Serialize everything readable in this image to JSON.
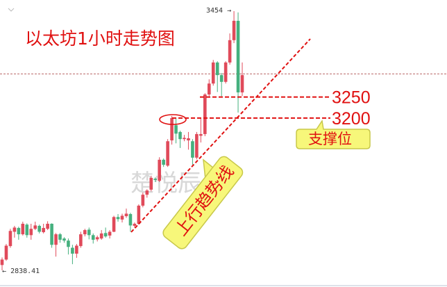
{
  "chart_data": {
    "type": "candlestick",
    "title": "以太坊1小时走势图",
    "xlabel": "",
    "ylabel": "",
    "ylim": [
      2838.41,
      3454
    ],
    "grid": false,
    "colors": {
      "up": "#e04a5a",
      "down": "#45b07e",
      "annotation": "#e01010",
      "callout_fill": "#f7f77a",
      "callout_border": "#c8c84a"
    },
    "high_label": "3454",
    "low_label": "2838.41",
    "high_arrow": "→",
    "low_arrow": "←",
    "current_price_line": 3305,
    "ohlc_columns": [
      "open",
      "high",
      "low",
      "close"
    ],
    "candles": [
      [
        2851,
        2869,
        2838.41,
        2864
      ],
      [
        2864,
        2901,
        2861,
        2897
      ],
      [
        2896,
        2937,
        2892,
        2932
      ],
      [
        2930,
        2944,
        2916,
        2940
      ],
      [
        2939,
        2942,
        2911,
        2924
      ],
      [
        2924,
        2954,
        2921,
        2949
      ],
      [
        2947,
        2950,
        2916,
        2922
      ],
      [
        2922,
        2949,
        2911,
        2937
      ],
      [
        2937,
        2954,
        2934,
        2945
      ],
      [
        2944,
        2947,
        2926,
        2930
      ],
      [
        2929,
        2949,
        2926,
        2939
      ],
      [
        2937,
        2955,
        2934,
        2949
      ],
      [
        2949,
        2950,
        2892,
        2899
      ],
      [
        2899,
        2927,
        2871,
        2924
      ],
      [
        2924,
        2927,
        2904,
        2911
      ],
      [
        2914,
        2917,
        2904,
        2909
      ],
      [
        2909,
        2914,
        2876,
        2894
      ],
      [
        2892,
        2899,
        2853,
        2878
      ],
      [
        2878,
        2901,
        2868,
        2897
      ],
      [
        2896,
        2930,
        2892,
        2924
      ],
      [
        2924,
        2937,
        2919,
        2934
      ],
      [
        2935,
        2940,
        2912,
        2922
      ],
      [
        2922,
        2926,
        2902,
        2911
      ],
      [
        2912,
        2921,
        2907,
        2917
      ],
      [
        2914,
        2934,
        2911,
        2926
      ],
      [
        2927,
        2940,
        2916,
        2919
      ],
      [
        2921,
        2934,
        2914,
        2930
      ],
      [
        2930,
        2968,
        2929,
        2965
      ],
      [
        2965,
        2972,
        2954,
        2960
      ],
      [
        2959,
        2973,
        2952,
        2968
      ],
      [
        2967,
        2985,
        2963,
        2973
      ],
      [
        2972,
        2975,
        2930,
        2945
      ],
      [
        2944,
        2952,
        2940,
        2949
      ],
      [
        2949,
        2995,
        2947,
        2992
      ],
      [
        2992,
        3023,
        2988,
        3018
      ],
      [
        3018,
        3031,
        3011,
        3028
      ],
      [
        3030,
        3063,
        3026,
        3058
      ],
      [
        3056,
        3059,
        3048,
        3053
      ],
      [
        3051,
        3107,
        3048,
        3101
      ],
      [
        3101,
        3104,
        3084,
        3089
      ],
      [
        3087,
        3150,
        3084,
        3145
      ],
      [
        3147,
        3205,
        3137,
        3200
      ],
      [
        3183,
        3200,
        3140,
        3163
      ],
      [
        3167,
        3170,
        3129,
        3150
      ],
      [
        3150,
        3160,
        3145,
        3153
      ],
      [
        3147,
        3167,
        3125,
        3152
      ],
      [
        3145,
        3150,
        3089,
        3106
      ],
      [
        3106,
        3167,
        3102,
        3162
      ],
      [
        3158,
        3200,
        3142,
        3162
      ],
      [
        3162,
        3259,
        3157,
        3256
      ],
      [
        3256,
        3292,
        3252,
        3282
      ],
      [
        3282,
        3338,
        3277,
        3332
      ],
      [
        3332,
        3335,
        3262,
        3302
      ],
      [
        3302,
        3307,
        3252,
        3286
      ],
      [
        3286,
        3335,
        3282,
        3332
      ],
      [
        3332,
        3401,
        3327,
        3385
      ],
      [
        3385,
        3454,
        3378,
        3431
      ],
      [
        3431,
        3451,
        3213,
        3261
      ],
      [
        3261,
        3332,
        3252,
        3302
      ]
    ],
    "support_levels": [
      {
        "value": 3250,
        "label": "3250"
      },
      {
        "value": 3200,
        "label": "3200"
      }
    ],
    "support_callout": "支撑位",
    "trendline_callout": "上行趋势线",
    "watermark": "楚悦辰"
  }
}
